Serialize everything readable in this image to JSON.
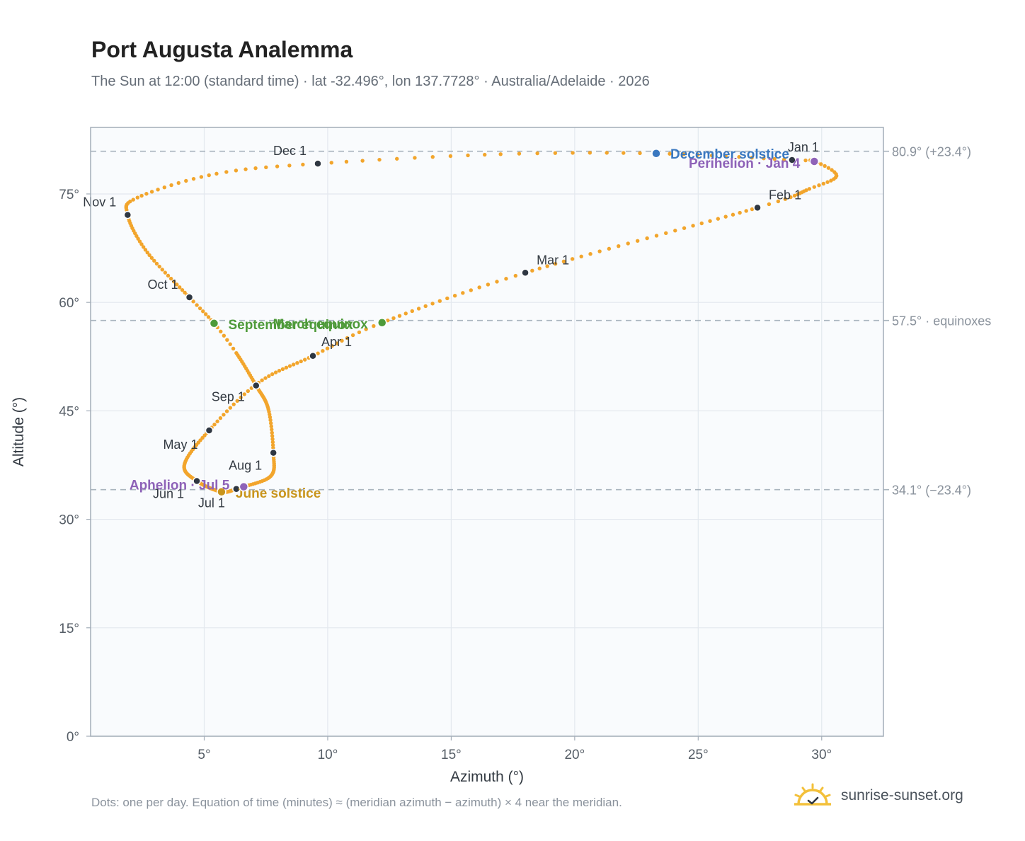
{
  "title": "Port Augusta Analemma",
  "subtitle": "The Sun at 12:00 (standard time) · lat -32.496°, lon 137.7728° · Australia/Adelaide · 2026",
  "footnote": "Dots: one per day. Equation of time (minutes) ≈ (meridian azimuth − azimuth) × 4 near the meridian.",
  "brand": {
    "name": "sunrise-sunset.org",
    "icon": "sun-icon"
  },
  "colors": {
    "analemma": "#f2a52c",
    "month_marker": "#2f3742",
    "equinox": "#4e9a3a",
    "december_solstice": "#3a78c0",
    "june_solstice": "#c9951c",
    "apsis": "#8e62b8",
    "reference_line": "#a9b4be",
    "grid": "#e3e8ee",
    "plot_background": "#f9fbfd"
  },
  "chart_data": {
    "type": "scatter",
    "xlabel": "Azimuth (°)",
    "ylabel": "Altitude (°)",
    "xlim": [
      0.4,
      32.5
    ],
    "ylim": [
      0,
      84.2
    ],
    "x_ticks": [
      {
        "value": 5,
        "label": "5°"
      },
      {
        "value": 10,
        "label": "10°"
      },
      {
        "value": 15,
        "label": "15°"
      },
      {
        "value": 20,
        "label": "20°"
      },
      {
        "value": 25,
        "label": "25°"
      },
      {
        "value": 30,
        "label": "30°"
      }
    ],
    "y_ticks": [
      {
        "value": 0,
        "label": "0°"
      },
      {
        "value": 15,
        "label": "15°"
      },
      {
        "value": 30,
        "label": "30°"
      },
      {
        "value": 45,
        "label": "45°"
      },
      {
        "value": 60,
        "label": "60°"
      },
      {
        "value": 75,
        "label": "75°"
      }
    ],
    "grid": true,
    "reference_lines": [
      {
        "y": 80.9,
        "label": "80.9° (+23.4°)"
      },
      {
        "y": 57.5,
        "label": "57.5° · equinoxes"
      },
      {
        "y": 34.1,
        "label": "34.1° (−23.4°)"
      }
    ],
    "curve_anchors": [
      {
        "day": 0,
        "x": 28.8,
        "y": 79.7
      },
      {
        "day": 4,
        "x": 29.7,
        "y": 79.5
      },
      {
        "day": 12,
        "x": 30.6,
        "y": 77.5
      },
      {
        "day": 20,
        "x": 29.5,
        "y": 75.7
      },
      {
        "day": 31,
        "x": 27.4,
        "y": 73.1
      },
      {
        "day": 59,
        "x": 18.0,
        "y": 64.1
      },
      {
        "day": 78,
        "x": 12.2,
        "y": 57.2
      },
      {
        "day": 90,
        "x": 9.4,
        "y": 52.6
      },
      {
        "day": 105,
        "x": 7.2,
        "y": 48.9
      },
      {
        "day": 120,
        "x": 5.2,
        "y": 42.3
      },
      {
        "day": 136,
        "x": 4.2,
        "y": 37.6
      },
      {
        "day": 151,
        "x": 4.7,
        "y": 35.3
      },
      {
        "day": 171,
        "x": 5.7,
        "y": 33.8
      },
      {
        "day": 181,
        "x": 6.3,
        "y": 34.2
      },
      {
        "day": 185,
        "x": 6.6,
        "y": 34.5
      },
      {
        "day": 199,
        "x": 7.7,
        "y": 36.0
      },
      {
        "day": 212,
        "x": 7.8,
        "y": 39.2
      },
      {
        "day": 227,
        "x": 7.6,
        "y": 45.2
      },
      {
        "day": 243,
        "x": 7.1,
        "y": 48.5
      },
      {
        "day": 258,
        "x": 6.3,
        "y": 53.0
      },
      {
        "day": 265,
        "x": 5.4,
        "y": 57.1
      },
      {
        "day": 273,
        "x": 4.4,
        "y": 60.7
      },
      {
        "day": 289,
        "x": 2.7,
        "y": 66.9
      },
      {
        "day": 304,
        "x": 1.9,
        "y": 72.1
      },
      {
        "day": 313,
        "x": 2.3,
        "y": 74.5
      },
      {
        "day": 325,
        "x": 5.5,
        "y": 77.8
      },
      {
        "day": 334,
        "x": 9.6,
        "y": 79.2
      },
      {
        "day": 345,
        "x": 17.0,
        "y": 80.5
      },
      {
        "day": 354,
        "x": 23.3,
        "y": 80.6
      },
      {
        "day": 365,
        "x": 28.8,
        "y": 79.7
      }
    ],
    "month_markers": [
      {
        "label": "Jan 1",
        "x": 28.8,
        "y": 79.7
      },
      {
        "label": "Feb 1",
        "x": 27.4,
        "y": 73.1
      },
      {
        "label": "Mar 1",
        "x": 18.0,
        "y": 64.1
      },
      {
        "label": "Apr 1",
        "x": 9.4,
        "y": 52.6
      },
      {
        "label": "May 1",
        "x": 5.2,
        "y": 42.3
      },
      {
        "label": "Jun 1",
        "x": 4.7,
        "y": 35.3
      },
      {
        "label": "Jul 1",
        "x": 6.3,
        "y": 34.2
      },
      {
        "label": "Aug 1",
        "x": 7.8,
        "y": 39.2
      },
      {
        "label": "Sep 1",
        "x": 7.1,
        "y": 48.5
      },
      {
        "label": "Oct 1",
        "x": 4.4,
        "y": 60.7
      },
      {
        "label": "Nov 1",
        "x": 1.9,
        "y": 72.1
      },
      {
        "label": "Dec 1",
        "x": 9.6,
        "y": 79.2
      }
    ],
    "events": [
      {
        "label": "December solstice",
        "x": 23.3,
        "y": 80.6,
        "kind": "december_solstice"
      },
      {
        "label": "Perihelion · Jan 4",
        "x": 29.7,
        "y": 79.5,
        "kind": "apsis"
      },
      {
        "label": "March equinox",
        "x": 12.2,
        "y": 57.2,
        "kind": "equinox"
      },
      {
        "label": "September equinox",
        "x": 5.4,
        "y": 57.1,
        "kind": "equinox"
      },
      {
        "label": "June solstice",
        "x": 5.7,
        "y": 33.8,
        "kind": "june_solstice"
      },
      {
        "label": "Aphelion · Jul 5",
        "x": 6.6,
        "y": 34.5,
        "kind": "apsis"
      }
    ]
  }
}
